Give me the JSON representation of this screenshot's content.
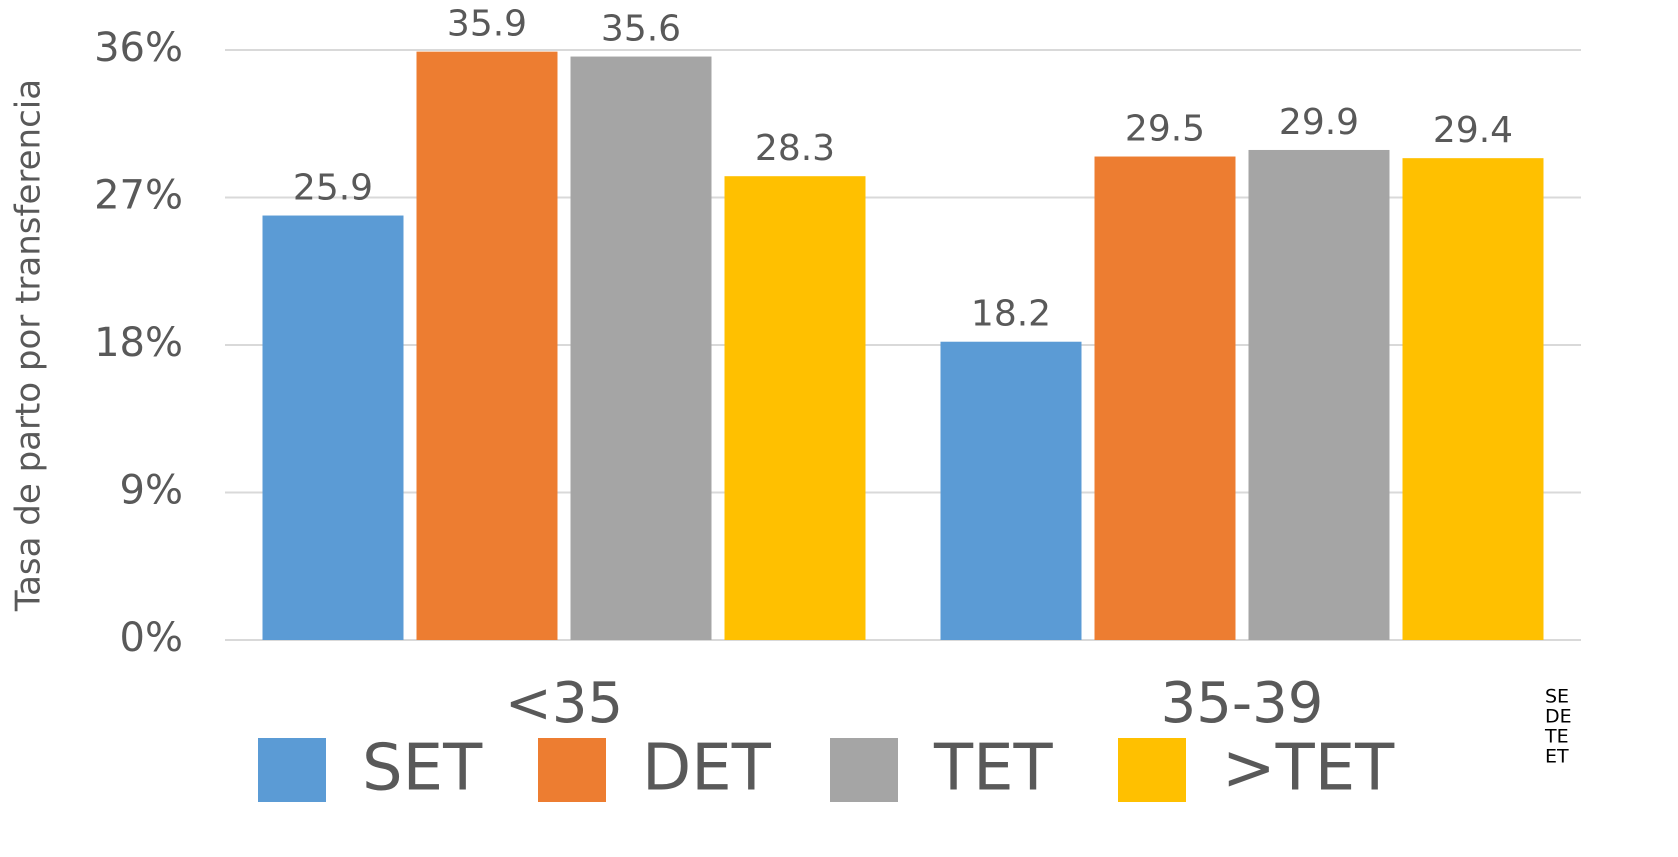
{
  "chart_data": {
    "type": "bar",
    "y_label": "Tasa de parto por transferencia",
    "categories": [
      "<35",
      "35-39"
    ],
    "series": [
      {
        "name": "SET",
        "color": "#5b9bd5",
        "values": [
          25.9,
          18.2
        ]
      },
      {
        "name": "DET",
        "color": "#ed7d31",
        "values": [
          35.9,
          29.5
        ]
      },
      {
        "name": "TET",
        "color": "#a5a5a5",
        "values": [
          35.6,
          29.9
        ]
      },
      {
        "name": ">TET",
        "color": "#ffc000",
        "values": [
          28.3,
          29.4
        ]
      }
    ],
    "ylim": [
      0,
      36
    ],
    "yticks": [
      {
        "value": 0,
        "label": "0%"
      },
      {
        "value": 9,
        "label": "9%"
      },
      {
        "value": 18,
        "label": "18%"
      },
      {
        "value": 27,
        "label": "27%"
      },
      {
        "value": 36,
        "label": "36%"
      }
    ],
    "grid": true,
    "legend": "bottom",
    "notes": [
      "SE",
      "DE",
      "TE",
      "ET"
    ]
  }
}
